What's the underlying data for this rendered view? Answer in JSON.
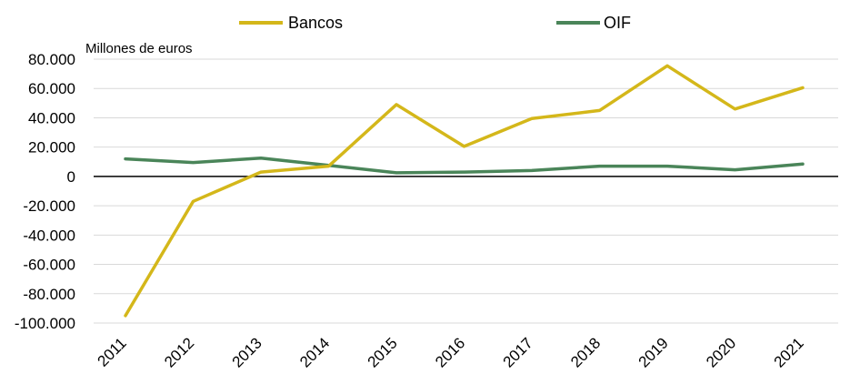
{
  "chart_data": {
    "type": "line",
    "unit_label": "Millones de euros",
    "categories": [
      "2011",
      "2012",
      "2013",
      "2014",
      "2015",
      "2016",
      "2017",
      "2018",
      "2019",
      "2020",
      "2021"
    ],
    "y_tick_labels": [
      "80.000",
      "60.000",
      "40.000",
      "20.000",
      "0",
      "-20.000",
      "-40.000",
      "-60.000",
      "-80.000",
      "-100.000"
    ],
    "y_ticks": [
      80000,
      60000,
      40000,
      20000,
      0,
      -20000,
      -40000,
      -60000,
      -80000,
      -100000
    ],
    "ylim": [
      -100000,
      80000
    ],
    "grid": true,
    "legend_position": "top",
    "series": [
      {
        "name": "Bancos",
        "color": "#D4B71A",
        "values": [
          -95000,
          -17000,
          3000,
          7000,
          49000,
          20500,
          39500,
          45000,
          75500,
          46000,
          60500
        ]
      },
      {
        "name": "OIF",
        "color": "#4A8559",
        "values": [
          12000,
          9500,
          12500,
          7500,
          2500,
          3000,
          4000,
          7000,
          7000,
          4500,
          8500
        ]
      }
    ]
  }
}
